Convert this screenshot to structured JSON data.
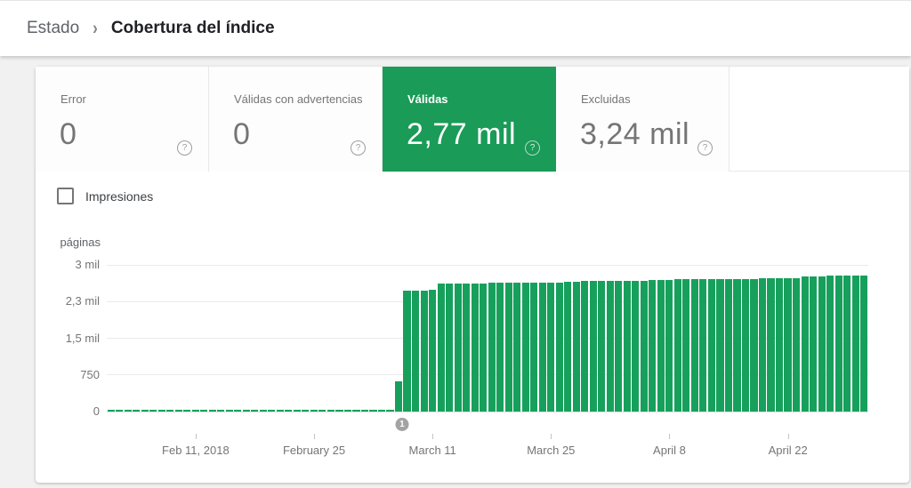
{
  "breadcrumb": {
    "parent": "Estado",
    "separator": "›",
    "current": "Cobertura del índice"
  },
  "icons": {
    "help_glyph": "?"
  },
  "colors": {
    "selected_tab_green": "#1a9b57",
    "bar_green": "#17a05c",
    "header_text": "#202124",
    "muted_text": "#757575"
  },
  "tabs": [
    {
      "id": "error",
      "label": "Error",
      "value": "0",
      "selected": false
    },
    {
      "id": "warnings",
      "label": "Válidas con advertencias",
      "value": "0",
      "selected": false
    },
    {
      "id": "valid",
      "label": "Válidas",
      "value": "2,77 mil",
      "selected": true
    },
    {
      "id": "excluded",
      "label": "Excluidas",
      "value": "3,24 mil",
      "selected": false
    }
  ],
  "impressions": {
    "label": "Impresiones",
    "checked": false
  },
  "chart_data": {
    "type": "bar",
    "title": "",
    "ylabel": "páginas",
    "start_date": "Feb 1, 2018",
    "end_date": "May 1, 2018",
    "ylim": [
      0,
      3000
    ],
    "grid": true,
    "y_tick_values": [
      0,
      750,
      1500,
      2250,
      3000
    ],
    "y_tick_labels": [
      "0",
      "750",
      "1,5 mil",
      "2,3 mil",
      "3 mil"
    ],
    "x_tick_labels": [
      "Feb 11, 2018",
      "February 25",
      "March 11",
      "March 25",
      "April 8",
      "April 22"
    ],
    "x_tick_day_index": [
      10,
      24,
      38,
      52,
      66,
      80
    ],
    "annotation": {
      "label": "1",
      "day_index": 34
    },
    "bar_color": "#17a05c",
    "values": [
      0,
      0,
      0,
      0,
      0,
      0,
      0,
      0,
      0,
      0,
      0,
      0,
      0,
      0,
      0,
      0,
      0,
      0,
      0,
      0,
      0,
      0,
      0,
      0,
      0,
      0,
      0,
      0,
      0,
      0,
      0,
      0,
      0,
      0,
      620,
      2470,
      2480,
      2480,
      2490,
      2610,
      2615,
      2620,
      2620,
      2625,
      2625,
      2630,
      2630,
      2635,
      2635,
      2640,
      2640,
      2640,
      2645,
      2645,
      2660,
      2660,
      2665,
      2665,
      2665,
      2670,
      2670,
      2670,
      2675,
      2675,
      2700,
      2700,
      2700,
      2705,
      2705,
      2705,
      2710,
      2710,
      2710,
      2710,
      2715,
      2715,
      2715,
      2720,
      2720,
      2720,
      2720,
      2725,
      2770,
      2770,
      2770,
      2775,
      2775,
      2775,
      2775,
      2775
    ]
  }
}
